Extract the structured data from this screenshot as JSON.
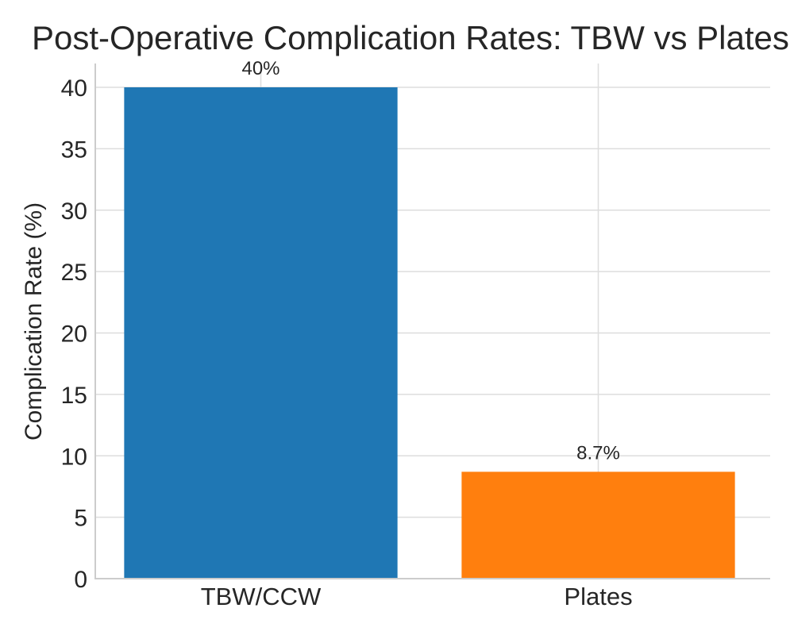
{
  "chart_data": {
    "type": "bar",
    "title": "Post-Operative Complication Rates: TBW vs Plates",
    "xlabel": "",
    "ylabel": "Complication Rate (%)",
    "categories": [
      "TBW/CCW",
      "Plates"
    ],
    "values": [
      40,
      8.7
    ],
    "data_labels": [
      "40%",
      "8.7%"
    ],
    "colors": [
      "#1f77b4",
      "#ff7f0e"
    ],
    "ylim": [
      0,
      40
    ],
    "yticks": [
      0,
      5,
      10,
      15,
      20,
      25,
      30,
      35,
      40
    ],
    "grid": true,
    "legend": "none"
  }
}
